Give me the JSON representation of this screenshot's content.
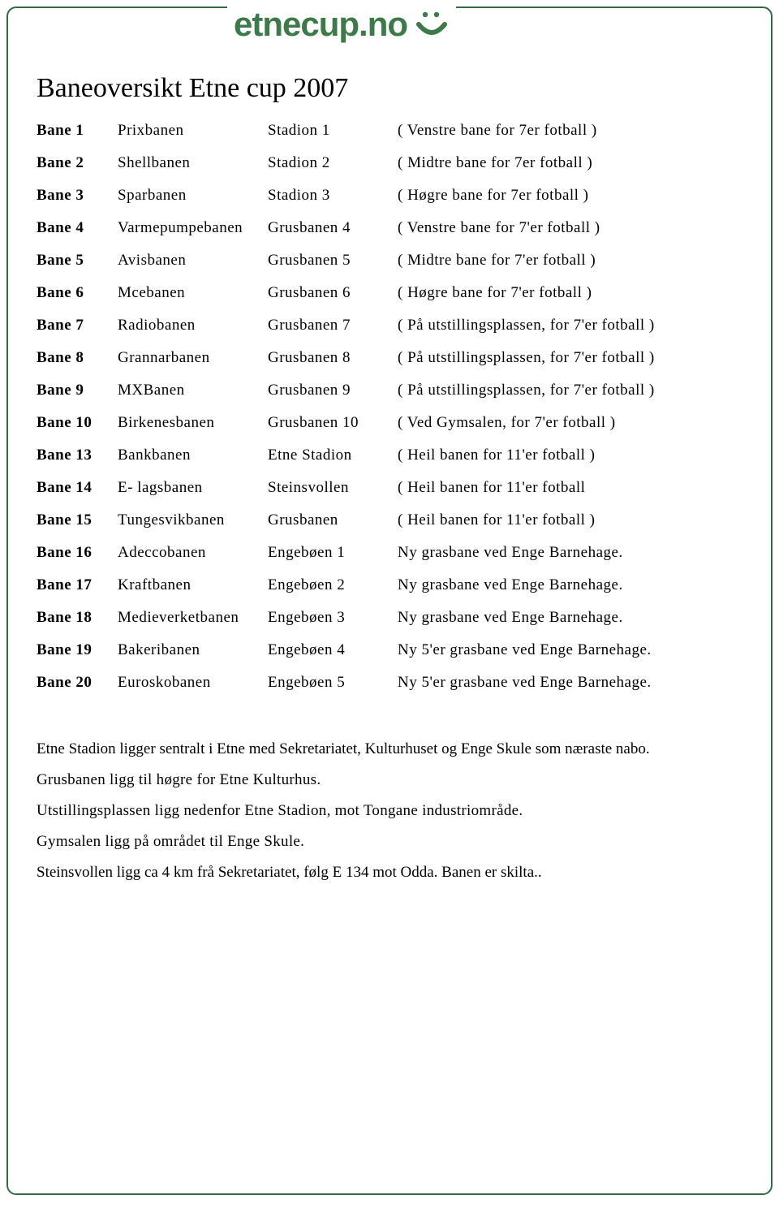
{
  "logo_text": "etnecup.no",
  "title": "Baneoversikt Etne cup 2007",
  "colors": {
    "border": "#316b3f",
    "logo": "#3d7a4a",
    "text": "#000000",
    "background": "#ffffff"
  },
  "columns": [
    "bane",
    "name",
    "location",
    "description"
  ],
  "rows": [
    {
      "bane": "Bane 1",
      "name": "Prixbanen",
      "location": "Stadion 1",
      "desc": "( Venstre bane for 7er fotball )"
    },
    {
      "bane": "Bane 2",
      "name": "Shellbanen",
      "location": "Stadion 2",
      "desc": "( Midtre bane for 7er fotball )"
    },
    {
      "bane": "Bane 3",
      "name": "Sparbanen",
      "location": "Stadion 3",
      "desc": "( Høgre bane for 7er fotball )"
    },
    {
      "bane": "Bane 4",
      "name": "Varmepumpebanen",
      "location": "Grusbanen 4",
      "desc": "( Venstre bane for 7'er fotball )"
    },
    {
      "bane": "Bane 5",
      "name": "Avisbanen",
      "location": "Grusbanen 5",
      "desc": "( Midtre bane for 7'er fotball )"
    },
    {
      "bane": "Bane 6",
      "name": "Mcebanen",
      "location": "Grusbanen 6",
      "desc": "( Høgre bane for 7'er fotball )"
    },
    {
      "bane": "Bane 7",
      "name": "Radiobanen",
      "location": "Grusbanen 7",
      "desc": "( På utstillingsplassen, for 7'er fotball )"
    },
    {
      "bane": "Bane 8",
      "name": "Grannarbanen",
      "location": "Grusbanen 8",
      "desc": "( På utstillingsplassen, for 7'er fotball )"
    },
    {
      "bane": "Bane 9",
      "name": "MXBanen",
      "location": "Grusbanen 9",
      "desc": "( På utstillingsplassen, for 7'er fotball )"
    },
    {
      "bane": "Bane 10",
      "name": "Birkenesbanen",
      "location": "Grusbanen 10",
      "desc": "( Ved Gymsalen, for 7'er fotball )"
    },
    {
      "bane": "Bane 13",
      "name": "Bankbanen",
      "location": "Etne Stadion",
      "desc": "( Heil banen for 11'er fotball )"
    },
    {
      "bane": "Bane 14",
      "name": "E- lagsbanen",
      "location": "Steinsvollen",
      "desc": "( Heil banen for 11'er fotball"
    },
    {
      "bane": "Bane 15",
      "name": "Tungesvikbanen",
      "location": "Grusbanen",
      "desc": "( Heil banen for 11'er fotball )"
    },
    {
      "bane": "Bane 16",
      "name": "Adeccobanen",
      "location": "Engebøen 1",
      "desc": "Ny grasbane ved Enge Barnehage."
    },
    {
      "bane": "Bane 17",
      "name": "Kraftbanen",
      "location": "Engebøen 2",
      "desc": "Ny grasbane ved Enge Barnehage."
    },
    {
      "bane": "Bane 18",
      "name": "Medieverketbanen",
      "location": "Engebøen 3",
      "desc": "Ny grasbane ved Enge Barnehage."
    },
    {
      "bane": "Bane 19",
      "name": "Bakeribanen",
      "location": "Engebøen 4",
      "desc": "Ny 5'er grasbane ved Enge Barnehage."
    },
    {
      "bane": "Bane 20",
      "name": "Euroskobanen",
      "location": "Engebøen 5",
      "desc": "Ny 5'er grasbane ved Enge Barnehage."
    }
  ],
  "notes": [
    "Etne Stadion ligger sentralt i Etne med Sekretariatet, Kulturhuset og Enge Skule som næraste nabo.",
    "Grusbanen ligg til høgre for Etne Kulturhus.",
    "Utstillingsplassen ligg nedenfor Etne Stadion, mot Tongane industriområde.",
    "Gymsalen ligg på området til Enge Skule.",
    "Steinsvollen ligg ca 4 km frå Sekretariatet, følg E 134 mot Odda. Banen er skilta.."
  ]
}
